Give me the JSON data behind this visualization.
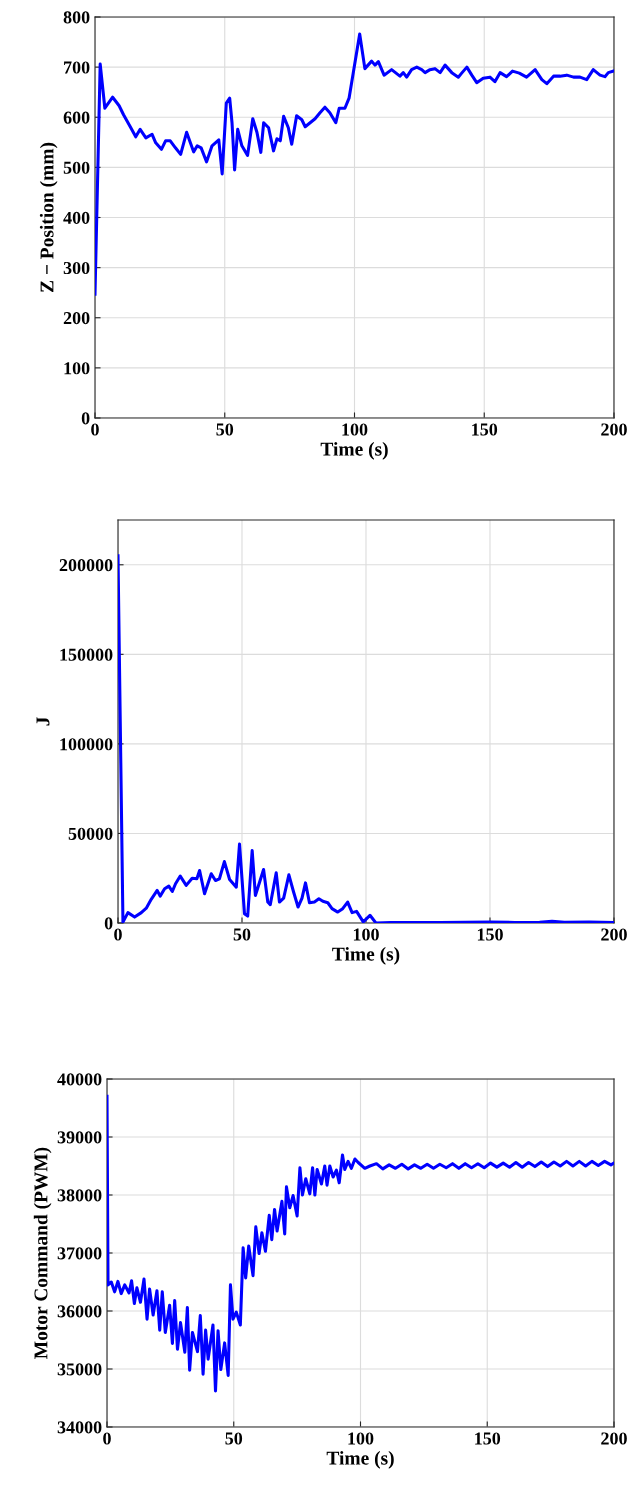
{
  "chart_data": [
    {
      "type": "line",
      "xlabel": "Time (s)",
      "ylabel": "Z − Position (mm)",
      "xlim": [
        0,
        200
      ],
      "ylim": [
        0,
        800
      ],
      "xticks": [
        0,
        50,
        100,
        150,
        200
      ],
      "yticks": [
        0,
        100,
        200,
        300,
        400,
        500,
        600,
        700,
        800
      ],
      "grid": true,
      "series": [
        {
          "color": "#0000ff",
          "x": [
            0,
            2,
            3.8,
            6.8,
            9.3,
            11,
            13.8,
            15.7,
            17.4,
            19.6,
            22,
            23.4,
            25.6,
            27.2,
            29,
            31,
            33,
            35.3,
            38,
            39.4,
            40.9,
            43,
            45.1,
            47.7,
            49,
            50.6,
            51.9,
            52.8,
            53.8,
            55,
            56.6,
            58.8,
            60.8,
            62.4,
            63.9,
            65,
            66.9,
            68.8,
            70.1,
            71.4,
            72.7,
            74.5,
            75.8,
            77.7,
            79.7,
            81,
            82.9,
            84.8,
            86.7,
            88.6,
            90.5,
            92.8,
            94.1,
            96.3,
            97.9,
            99.5,
            102,
            104,
            106.6,
            107.9,
            109.2,
            111.4,
            114.3,
            117.5,
            118.8,
            120.1,
            122,
            124,
            125.9,
            127.2,
            129.1,
            131,
            133,
            134.9,
            137.5,
            140,
            141.3,
            143.3,
            145.2,
            147.1,
            149.6,
            152.2,
            154.1,
            156.1,
            158.6,
            160.9,
            163.5,
            166.3,
            169.6,
            172.2,
            174.1,
            176.7,
            179.2,
            181.8,
            184.4,
            186.9,
            189.5,
            192,
            194.6,
            196.5,
            197.8,
            199.7
          ],
          "values": [
            247,
            706,
            618,
            640,
            623,
            605,
            579,
            561,
            576,
            559,
            566,
            549,
            536,
            553,
            553,
            539,
            526,
            570,
            531,
            543,
            539,
            511,
            543,
            555,
            487,
            628,
            638,
            589,
            495,
            576,
            543,
            524,
            597,
            570,
            530,
            589,
            579,
            533,
            557,
            553,
            602,
            579,
            546,
            603,
            595,
            581,
            589,
            597,
            609,
            620,
            609,
            589,
            618,
            618,
            638,
            688,
            766,
            697,
            712,
            704,
            711,
            684,
            695,
            682,
            689,
            680,
            695,
            700,
            695,
            689,
            695,
            697,
            689,
            704,
            689,
            680,
            688,
            700,
            684,
            669,
            678,
            680,
            671,
            689,
            681,
            692,
            688,
            680,
            695,
            675,
            667,
            682,
            682,
            684,
            680,
            680,
            675,
            695,
            684,
            681,
            689,
            692
          ]
        }
      ]
    },
    {
      "type": "line",
      "xlabel": "Time (s)",
      "ylabel": "J",
      "xlim": [
        0,
        200
      ],
      "ylim": [
        0,
        225000
      ],
      "xticks": [
        0,
        50,
        100,
        150,
        200
      ],
      "yticks": [
        0,
        50000,
        100000,
        150000,
        200000
      ],
      "grid": true,
      "series": [
        {
          "color": "#0000ff",
          "x": [
            0,
            2,
            4,
            6.7,
            9.4,
            11.4,
            13.4,
            15.8,
            17,
            18.8,
            20.5,
            21.9,
            23.2,
            25.1,
            27.5,
            29.9,
            31.8,
            32.9,
            34.9,
            37.6,
            39.3,
            40.9,
            42.9,
            45,
            47.7,
            49,
            51,
            52.3,
            54.1,
            55.4,
            58.7,
            60.4,
            61.4,
            63.8,
            65.1,
            66.8,
            68.9,
            70.8,
            72.6,
            74.2,
            75.6,
            77.2,
            79.2,
            81,
            82.6,
            84.6,
            86.3,
            88.6,
            90.6,
            92.6,
            94.4,
            96.2,
            98.9,
            101.6,
            104,
            110,
            120,
            130,
            140,
            150,
            160,
            170,
            175,
            180,
            190,
            200
          ],
          "values": [
            205000,
            500,
            5800,
            3300,
            5800,
            8300,
            13200,
            18200,
            15000,
            19100,
            20600,
            17600,
            21900,
            26200,
            21000,
            25000,
            24700,
            29300,
            16300,
            27500,
            23700,
            24700,
            34300,
            24300,
            20000,
            44100,
            5200,
            3900,
            40400,
            15400,
            29900,
            11700,
            10200,
            28000,
            11700,
            13900,
            26900,
            17300,
            8900,
            13900,
            22400,
            11300,
            11700,
            13500,
            12100,
            11300,
            8000,
            6100,
            8000,
            11700,
            5800,
            6500,
            600,
            4300,
            0,
            200,
            300,
            200,
            400,
            600,
            300,
            400,
            900,
            400,
            500,
            300
          ]
        }
      ]
    },
    {
      "type": "line",
      "xlabel": "Time (s)",
      "ylabel": "Motor Command (PWM)",
      "xlim": [
        0,
        200
      ],
      "ylim": [
        34000,
        40000
      ],
      "xticks": [
        0,
        50,
        100,
        150,
        200
      ],
      "yticks": [
        34000,
        35000,
        36000,
        37000,
        38000,
        39000,
        40000
      ],
      "grid": true,
      "series": [
        {
          "color": "#0000ff",
          "x": [
            0,
            0.4,
            1.7,
            3,
            4.3,
            5.6,
            7,
            8.7,
            9.7,
            10.8,
            11.8,
            13.2,
            14.6,
            15.8,
            16.8,
            18.2,
            19.7,
            20.8,
            21.8,
            23,
            24.7,
            25.8,
            26.7,
            27.8,
            29,
            30.7,
            31.7,
            32.6,
            33.7,
            35.7,
            36.8,
            37.9,
            38.9,
            39.9,
            41.8,
            42.8,
            43.8,
            44.9,
            46.4,
            47.8,
            48.7,
            49.7,
            51,
            52.6,
            53.7,
            54.7,
            55.9,
            57.6,
            58.7,
            60,
            61.1,
            62.5,
            64,
            65,
            66.1,
            67.1,
            69,
            70.1,
            70.8,
            72.1,
            73.4,
            75,
            76.1,
            77.1,
            78.4,
            80,
            81.1,
            82,
            82.9,
            84.6,
            85.9,
            86.8,
            87.9,
            89.2,
            90.5,
            91.6,
            92.9,
            93.8,
            95.1,
            96.4,
            97.8,
            99.1,
            101.7,
            103.7,
            106.3,
            108.8,
            111.3,
            113.8,
            116.3,
            118.8,
            121.3,
            123.8,
            126.3,
            128.8,
            131.3,
            133.8,
            136.3,
            138.8,
            141.3,
            143.8,
            146.3,
            148.8,
            151.3,
            153.8,
            156.3,
            158.8,
            161.3,
            163.8,
            166.3,
            168.8,
            171.3,
            173.8,
            176.3,
            178.8,
            181.3,
            183.8,
            186.3,
            188.8,
            191.3,
            193.8,
            196.3,
            198.8,
            200
          ],
          "values": [
            39700,
            36450,
            36500,
            36330,
            36510,
            36300,
            36450,
            36310,
            36520,
            36130,
            36400,
            36150,
            36550,
            35860,
            36380,
            35930,
            36350,
            35670,
            36330,
            35630,
            36100,
            35440,
            36180,
            35340,
            35800,
            35290,
            36060,
            34980,
            35630,
            35300,
            35920,
            34910,
            35670,
            35170,
            35760,
            34620,
            35660,
            34990,
            35450,
            34890,
            36450,
            35860,
            35980,
            35760,
            37090,
            36570,
            37120,
            36610,
            37450,
            36990,
            37350,
            37030,
            37650,
            37230,
            37750,
            37380,
            37890,
            37330,
            38140,
            37780,
            37990,
            37640,
            38470,
            38000,
            38280,
            38020,
            38470,
            38000,
            38440,
            38190,
            38500,
            38170,
            38500,
            38310,
            38430,
            38210,
            38690,
            38440,
            38580,
            38460,
            38620,
            38560,
            38460,
            38500,
            38540,
            38450,
            38520,
            38460,
            38530,
            38450,
            38520,
            38460,
            38530,
            38460,
            38530,
            38470,
            38540,
            38460,
            38540,
            38470,
            38540,
            38470,
            38550,
            38480,
            38550,
            38480,
            38560,
            38480,
            38560,
            38490,
            38570,
            38490,
            38570,
            38500,
            38580,
            38500,
            38580,
            38500,
            38580,
            38510,
            38580,
            38520,
            38550
          ]
        }
      ]
    }
  ]
}
